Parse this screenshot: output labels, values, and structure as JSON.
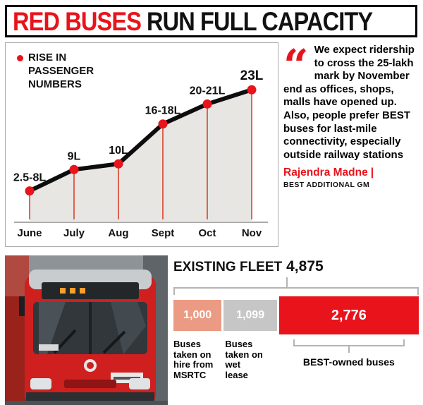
{
  "header": {
    "title_red": "RED BUSES",
    "title_rest": "RUN FULL CAPACITY"
  },
  "chart_data": {
    "type": "line",
    "title": "RISE IN PASSENGER NUMBERS",
    "categories": [
      "June",
      "July",
      "Aug",
      "Sept",
      "Oct",
      "Nov"
    ],
    "values": [
      5.25,
      9,
      10,
      17,
      20.5,
      23
    ],
    "point_labels": [
      "2.5-8L",
      "9L",
      "10L",
      "16-18L",
      "20-21L",
      "23L"
    ],
    "unit": "L (lakh passengers)",
    "ylim": [
      0,
      26
    ],
    "grid": false,
    "legend_position": "top-left",
    "line_color": "#0d0d0d",
    "marker_color": "#e8131b",
    "drop_line_color": "#d8442a",
    "area_fill": "#e7e6e3"
  },
  "quote": {
    "mark": "“",
    "text": "We expect ridership to cross the 25-lakh mark by November end as offices, shops, malls have opened up. Also, people prefer BEST buses for last-mile connectivity, especially outside railway stations",
    "author": "Rajendra Madne",
    "separator": "|",
    "author_title": "BEST ADDITIONAL GM"
  },
  "fleet": {
    "title": "EXISTING FLEET",
    "total": "4,875",
    "segments": [
      {
        "value": "1,000",
        "numeric": 1000,
        "label": "Buses taken on hire from MSRTC",
        "color": "#eb9b83",
        "text_color": "#ffffff"
      },
      {
        "value": "1,099",
        "numeric": 1099,
        "label": "Buses taken on wet lease",
        "color": "#c6c6c6",
        "text_color": "#ffffff"
      },
      {
        "value": "2,776",
        "numeric": 2776,
        "label": "BEST-owned buses",
        "color": "#e8131b",
        "text_color": "#ffffff"
      }
    ]
  },
  "colors": {
    "accent_red": "#e8131b"
  }
}
